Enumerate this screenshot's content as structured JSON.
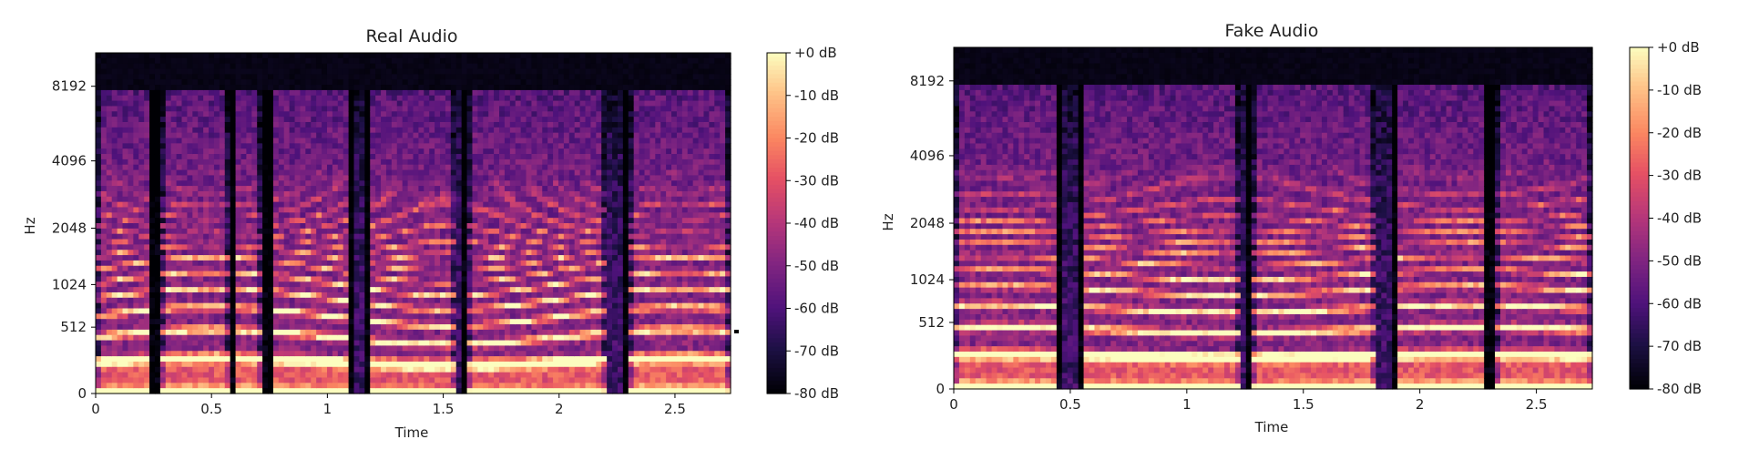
{
  "chart_data": [
    {
      "type": "heatmap",
      "title": "Real Audio",
      "xlabel": "Time",
      "ylabel": "Hz",
      "x_ticks": [
        "0",
        "0.5",
        "1",
        "1.5",
        "2",
        "2.5"
      ],
      "x_tick_values": [
        0,
        0.5,
        1,
        1.5,
        2,
        2.5
      ],
      "xlim": [
        0,
        2.74
      ],
      "y_ticks": [
        "0",
        "512",
        "1024",
        "2048",
        "4096",
        "8192"
      ],
      "y_tick_values": [
        0,
        512,
        1024,
        2048,
        4096,
        8192
      ],
      "ylim": [
        0,
        11025
      ],
      "y_scale": "mel",
      "colorbar": {
        "ticks": [
          "+0 dB",
          "-10 dB",
          "-20 dB",
          "-30 dB",
          "-40 dB",
          "-50 dB",
          "-60 dB",
          "-70 dB",
          "-80 dB"
        ],
        "range_db": [
          -80,
          0
        ],
        "colormap": "magma"
      },
      "top_band_cutoff_hz": 8000,
      "speech_segments": [
        [
          0.0,
          0.24
        ],
        [
          0.28,
          0.58
        ],
        [
          0.6,
          0.72
        ],
        [
          0.76,
          1.1
        ],
        [
          1.18,
          1.55
        ],
        [
          1.6,
          2.2
        ],
        [
          2.3,
          2.74
        ]
      ],
      "grid": false
    },
    {
      "type": "heatmap",
      "title": "Fake Audio",
      "xlabel": "Time",
      "ylabel": "Hz",
      "x_ticks": [
        "0",
        "0.5",
        "1",
        "1.5",
        "2",
        "2.5"
      ],
      "x_tick_values": [
        0,
        0.5,
        1,
        1.5,
        2,
        2.5
      ],
      "xlim": [
        0,
        2.74
      ],
      "y_ticks": [
        "0",
        "512",
        "1024",
        "2048",
        "4096",
        "8192"
      ],
      "y_tick_values": [
        0,
        512,
        1024,
        2048,
        4096,
        8192
      ],
      "ylim": [
        0,
        11025
      ],
      "y_scale": "mel",
      "colorbar": {
        "ticks": [
          "+0 dB",
          "-10 dB",
          "-20 dB",
          "-30 dB",
          "-40 dB",
          "-50 dB",
          "-60 dB",
          "-70 dB",
          "-80 dB"
        ],
        "range_db": [
          -80,
          0
        ],
        "colormap": "magma"
      },
      "top_band_cutoff_hz": 8000,
      "speech_segments": [
        [
          0.0,
          0.45
        ],
        [
          0.55,
          1.22
        ],
        [
          1.28,
          1.8
        ],
        [
          1.9,
          2.28
        ],
        [
          2.32,
          2.74
        ]
      ],
      "grid": false
    }
  ]
}
